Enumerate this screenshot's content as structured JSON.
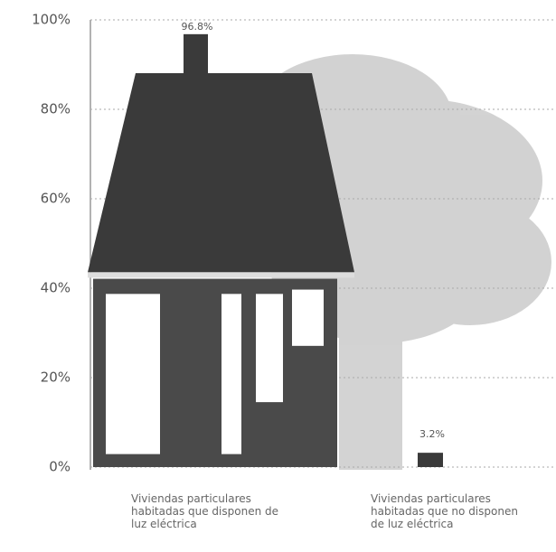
{
  "chart_data": {
    "type": "pictograph",
    "categories": [
      "Viviendas particulares habitadas que disponen de luz eléctrica",
      "Viviendas particulares habitadas que no disponen de luz eléctrica"
    ],
    "values": [
      96.8,
      3.2
    ],
    "value_labels": [
      "96.8%",
      "3.2%"
    ],
    "color": "#3a3a3a",
    "ylim": [
      0,
      100
    ],
    "yticks": [
      {
        "value": 0,
        "label": "0%"
      },
      {
        "value": 20,
        "label": "20%"
      },
      {
        "value": 40,
        "label": "40%"
      },
      {
        "value": 60,
        "label": "60%"
      },
      {
        "value": 80,
        "label": "80%"
      },
      {
        "value": 100,
        "label": "100%"
      }
    ],
    "grid": true
  }
}
